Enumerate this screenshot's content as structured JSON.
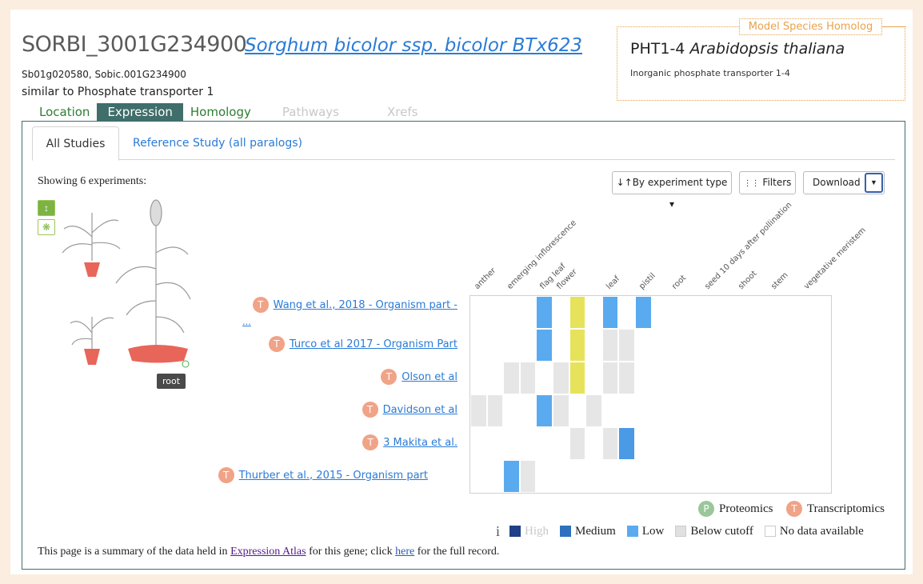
{
  "gene": {
    "id": "SORBI_3001G234900",
    "species": "Sorghum bicolor ssp. bicolor BTx623",
    "synonyms": "Sb01g020580, Sobic.001G234900",
    "description": "similar to Phosphate transporter 1"
  },
  "homolog": {
    "tag": "Model Species Homolog",
    "symbol": "PHT1-4",
    "species": "Arabidopsis thaliana",
    "description": "Inorganic phosphate transporter 1-4"
  },
  "tabs": [
    "Location",
    "Expression",
    "Homology",
    "Pathways",
    "Xrefs"
  ],
  "subtabs": {
    "all": "All Studies",
    "reference": "Reference Study (all paralogs)"
  },
  "toolbar": {
    "showing": "Showing 6 experiments:",
    "sort_label": "By experiment type",
    "filters_label": "Filters",
    "download_label": "Download"
  },
  "anatomogram": {
    "tooltip": "root"
  },
  "icons": {
    "sort": "sort-icon",
    "filter": "filter-icon",
    "caret": "caret-down-icon",
    "plant": "plant-icon",
    "flower": "flower-icon",
    "info": "info-icon"
  },
  "tissues": [
    "anther",
    "emerging inflorescence",
    "flag leaf",
    "flower",
    "leaf",
    "pistil",
    "root",
    "seed 10 days after pollination",
    "shoot",
    "stem",
    "vegetative meristem"
  ],
  "experiments": [
    {
      "label": "Wang et al., 2018 - Organism part -",
      "continuation": "...",
      "badge": "T"
    },
    {
      "label": "Turco et al 2017 - Organism Part",
      "badge": "T"
    },
    {
      "label": "Olson et al",
      "badge": "T"
    },
    {
      "label": "Davidson et al",
      "badge": "T"
    },
    {
      "label": "3 Makita et al.",
      "badge": "T"
    },
    {
      "label": "Thurber et al., 2015 - Organism part",
      "badge": "T"
    }
  ],
  "heatmap": {
    "cells": [
      {
        "row": 0,
        "col": 4,
        "level": "low"
      },
      {
        "row": 0,
        "col": 6,
        "level": "selected"
      },
      {
        "row": 0,
        "col": 8,
        "level": "low"
      },
      {
        "row": 0,
        "col": 10,
        "level": "low"
      },
      {
        "row": 1,
        "col": 4,
        "level": "low"
      },
      {
        "row": 1,
        "col": 6,
        "level": "selected"
      },
      {
        "row": 1,
        "col": 8,
        "level": "below"
      },
      {
        "row": 1,
        "col": 9,
        "level": "below"
      },
      {
        "row": 2,
        "col": 2,
        "level": "below"
      },
      {
        "row": 2,
        "col": 3,
        "level": "below"
      },
      {
        "row": 2,
        "col": 5,
        "level": "below"
      },
      {
        "row": 2,
        "col": 6,
        "level": "selected"
      },
      {
        "row": 2,
        "col": 8,
        "level": "below"
      },
      {
        "row": 2,
        "col": 9,
        "level": "below"
      },
      {
        "row": 3,
        "col": 0,
        "level": "below"
      },
      {
        "row": 3,
        "col": 1,
        "level": "below"
      },
      {
        "row": 3,
        "col": 4,
        "level": "low"
      },
      {
        "row": 3,
        "col": 5,
        "level": "below"
      },
      {
        "row": 3,
        "col": 7,
        "level": "below"
      },
      {
        "row": 4,
        "col": 6,
        "level": "below"
      },
      {
        "row": 4,
        "col": 8,
        "level": "below"
      },
      {
        "row": 4,
        "col": 9,
        "level": "medium-low"
      },
      {
        "row": 5,
        "col": 2,
        "level": "low"
      },
      {
        "row": 5,
        "col": 3,
        "level": "below"
      }
    ],
    "colors": {
      "low": "#5aaaf0",
      "medium-low": "#4a9ae6",
      "selected": "#e6e35a",
      "below": "#e6e6e6",
      "medium": "#2f6fbf",
      "high": "#1f3f88"
    }
  },
  "legend": {
    "proteomics": "Proteomics",
    "transcriptomics": "Transcriptomics",
    "p_badge": "P",
    "t_badge": "T",
    "info_glyph": "i",
    "high": "High",
    "medium": "Medium",
    "low": "Low",
    "below": "Below cutoff",
    "nodata": "No data available"
  },
  "footer": {
    "prefix": "This page is a summary of the data held in ",
    "atlas_link": "Expression Atlas",
    "middle": " for this gene; click ",
    "here_link": "here",
    "suffix": " for the full record."
  }
}
